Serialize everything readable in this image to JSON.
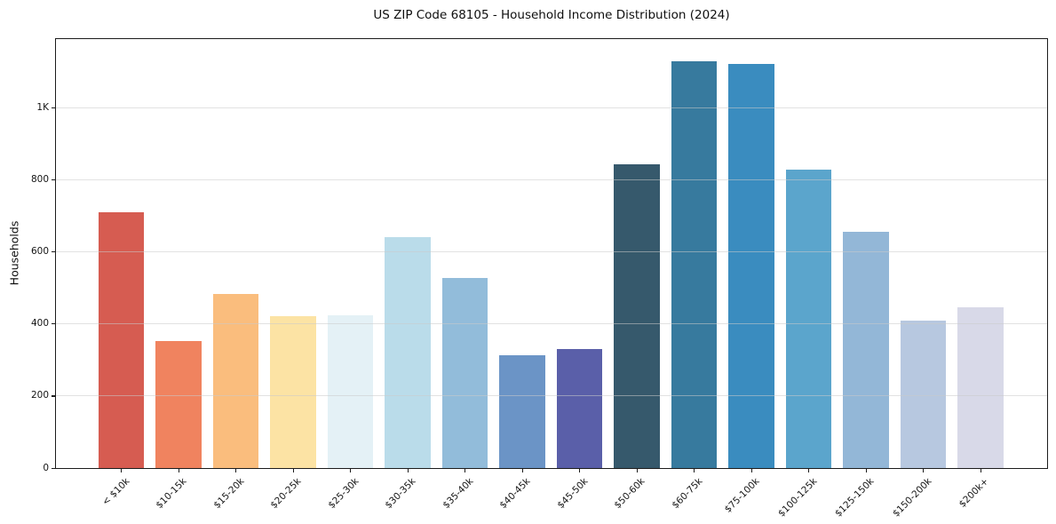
{
  "chart_data": {
    "type": "bar",
    "title": "US ZIP Code 68105 - Household Income Distribution (2024)",
    "xlabel": "",
    "ylabel": "Households",
    "categories": [
      "< $10k",
      "$10-15k",
      "$15-20k",
      "$20-25k",
      "$25-30k",
      "$30-35k",
      "$35-40k",
      "$40-45k",
      "$45-50k",
      "$50-60k",
      "$60-75k",
      "$75-100k",
      "$100-125k",
      "$125-150k",
      "$150-200k",
      "$200k+"
    ],
    "values": [
      710,
      353,
      482,
      421,
      423,
      640,
      527,
      314,
      329,
      842,
      1129,
      1121,
      827,
      656,
      408,
      446
    ],
    "bar_colors": [
      "#d65c51",
      "#f0835f",
      "#fabd7d",
      "#fce3a4",
      "#e4f1f6",
      "#badcea",
      "#92bcda",
      "#6b94c6",
      "#5a5fa9",
      "#36596c",
      "#377a9e",
      "#3a8cbf",
      "#5ba5cc",
      "#93b7d7",
      "#b7c8e0",
      "#d8d9e8"
    ],
    "yticks": {
      "values": [
        0,
        200,
        400,
        600,
        800,
        1000
      ],
      "labels": [
        "0",
        "200",
        "400",
        "600",
        "800",
        "1K"
      ]
    },
    "ylim": [
      0,
      1190
    ],
    "xlim": [
      -1.14,
      16.16
    ],
    "bar_width_fraction": 0.8,
    "xtick_rotation_deg": 45,
    "grid": "horizontal",
    "grid_color": "rgba(203,203,203,0.55)",
    "legend": "none",
    "background": "#ffffff",
    "spine_color": "#1c1c1c"
  }
}
